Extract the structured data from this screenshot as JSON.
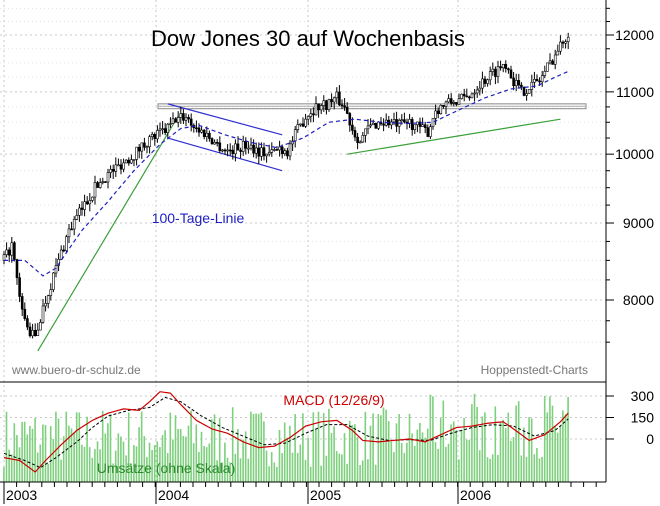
{
  "chart_data": [
    {
      "type": "candlestick",
      "title": "Dow Jones 30 auf Wochenbasis",
      "y_scale": "log",
      "ylim": [
        7300,
        12600
      ],
      "y_ticks": [
        "12000",
        "11000",
        "10000",
        "9000",
        "8000"
      ],
      "y_tick_values": [
        12000,
        11000,
        10000,
        9000,
        8000
      ],
      "x_labels": [
        "2003",
        "2004",
        "2005",
        "2006"
      ],
      "grid": true,
      "annotations": {
        "ma_label": "100-Tage-Linie",
        "source_left": "www.buero-dr-schulz.de",
        "source_right": "Hoppenstedt-Charts"
      },
      "price_keypoints": [
        [
          0,
          8500
        ],
        [
          3,
          8700
        ],
        [
          6,
          8000
        ],
        [
          9,
          7650
        ],
        [
          12,
          7550
        ],
        [
          15,
          7900
        ],
        [
          20,
          8400
        ],
        [
          25,
          8900
        ],
        [
          30,
          9200
        ],
        [
          35,
          9500
        ],
        [
          40,
          9700
        ],
        [
          45,
          9850
        ],
        [
          50,
          10000
        ],
        [
          55,
          10200
        ],
        [
          59,
          10300
        ],
        [
          63,
          10400
        ],
        [
          66,
          10550
        ],
        [
          70,
          10600
        ],
        [
          74,
          10400
        ],
        [
          78,
          10300
        ],
        [
          82,
          10150
        ],
        [
          86,
          10050
        ],
        [
          90,
          10100
        ],
        [
          94,
          10150
        ],
        [
          98,
          10050
        ],
        [
          102,
          10000
        ],
        [
          106,
          10100
        ],
        [
          109,
          10050
        ],
        [
          112,
          10300
        ],
        [
          116,
          10600
        ],
        [
          120,
          10750
        ],
        [
          124,
          10800
        ],
        [
          128,
          10900
        ],
        [
          131,
          10750
        ],
        [
          134,
          10400
        ],
        [
          137,
          10200
        ],
        [
          140,
          10400
        ],
        [
          144,
          10500
        ],
        [
          148,
          10500
        ],
        [
          152,
          10450
        ],
        [
          156,
          10500
        ],
        [
          160,
          10400
        ],
        [
          163,
          10350
        ],
        [
          166,
          10700
        ],
        [
          170,
          10800
        ],
        [
          174,
          10850
        ],
        [
          178,
          10900
        ],
        [
          182,
          11100
        ],
        [
          186,
          11250
        ],
        [
          190,
          11400
        ],
        [
          193,
          11500
        ],
        [
          196,
          11200
        ],
        [
          199,
          11000
        ],
        [
          202,
          11100
        ],
        [
          206,
          11200
        ],
        [
          210,
          11500
        ],
        [
          214,
          11800
        ],
        [
          217,
          12050
        ]
      ],
      "ma_keypoints": [
        [
          0,
          8500
        ],
        [
          8,
          8500
        ],
        [
          15,
          8300
        ],
        [
          20,
          8400
        ],
        [
          30,
          8900
        ],
        [
          40,
          9300
        ],
        [
          50,
          9750
        ],
        [
          60,
          10150
        ],
        [
          68,
          10400
        ],
        [
          75,
          10450
        ],
        [
          85,
          10300
        ],
        [
          95,
          10180
        ],
        [
          105,
          10100
        ],
        [
          115,
          10250
        ],
        [
          125,
          10500
        ],
        [
          135,
          10550
        ],
        [
          145,
          10500
        ],
        [
          155,
          10480
        ],
        [
          165,
          10500
        ],
        [
          175,
          10700
        ],
        [
          185,
          10900
        ],
        [
          195,
          11050
        ],
        [
          205,
          11100
        ],
        [
          212,
          11250
        ],
        [
          217,
          11350
        ]
      ],
      "trendlines": [
        {
          "from": [
            13,
            7400
          ],
          "to": [
            67,
            10600
          ],
          "color": "#3aa03a"
        },
        {
          "from": [
            63,
            10800
          ],
          "to": [
            107,
            10300
          ],
          "color": "#3030d0"
        },
        {
          "from": [
            63,
            10250
          ],
          "to": [
            107,
            9750
          ],
          "color": "#3030d0"
        },
        {
          "from": [
            132,
            10000
          ],
          "to": [
            214,
            10550
          ],
          "color": "#3aa03a"
        }
      ],
      "resistance_band": [
        10720,
        10800
      ],
      "colors": {
        "price": "#000000",
        "ma": "#2020c0",
        "grid": "#c8c8c8"
      }
    },
    {
      "type": "macd",
      "title": "MACD (12/26/9)",
      "y_ticks": [
        "300",
        "150",
        "0"
      ],
      "y_tick_values": [
        300,
        150,
        0
      ],
      "ylim": [
        -250,
        360
      ],
      "volume_label": "Umsätze (ohne Skala)",
      "macd_keypoints": [
        [
          0,
          -130
        ],
        [
          6,
          -150
        ],
        [
          12,
          -230
        ],
        [
          16,
          -150
        ],
        [
          22,
          -40
        ],
        [
          28,
          60
        ],
        [
          34,
          130
        ],
        [
          40,
          180
        ],
        [
          46,
          210
        ],
        [
          52,
          200
        ],
        [
          56,
          260
        ],
        [
          60,
          330
        ],
        [
          64,
          320
        ],
        [
          68,
          240
        ],
        [
          74,
          130
        ],
        [
          80,
          70
        ],
        [
          86,
          40
        ],
        [
          92,
          -20
        ],
        [
          98,
          -60
        ],
        [
          104,
          -50
        ],
        [
          110,
          10
        ],
        [
          116,
          90
        ],
        [
          122,
          120
        ],
        [
          128,
          130
        ],
        [
          134,
          60
        ],
        [
          138,
          -10
        ],
        [
          144,
          -20
        ],
        [
          150,
          -10
        ],
        [
          156,
          0
        ],
        [
          162,
          -20
        ],
        [
          168,
          30
        ],
        [
          174,
          80
        ],
        [
          180,
          90
        ],
        [
          186,
          110
        ],
        [
          192,
          120
        ],
        [
          196,
          70
        ],
        [
          202,
          -10
        ],
        [
          208,
          30
        ],
        [
          214,
          120
        ],
        [
          217,
          180
        ]
      ],
      "signal_keypoints": [
        [
          0,
          -100
        ],
        [
          8,
          -150
        ],
        [
          14,
          -200
        ],
        [
          20,
          -130
        ],
        [
          28,
          -20
        ],
        [
          34,
          80
        ],
        [
          40,
          160
        ],
        [
          48,
          200
        ],
        [
          56,
          220
        ],
        [
          62,
          290
        ],
        [
          68,
          260
        ],
        [
          76,
          160
        ],
        [
          84,
          80
        ],
        [
          92,
          20
        ],
        [
          100,
          -40
        ],
        [
          108,
          -30
        ],
        [
          116,
          40
        ],
        [
          124,
          100
        ],
        [
          132,
          100
        ],
        [
          140,
          20
        ],
        [
          148,
          -10
        ],
        [
          156,
          -5
        ],
        [
          164,
          -10
        ],
        [
          172,
          40
        ],
        [
          180,
          80
        ],
        [
          188,
          100
        ],
        [
          196,
          90
        ],
        [
          204,
          20
        ],
        [
          212,
          60
        ],
        [
          217,
          140
        ]
      ],
      "colors": {
        "macd": "#cc0000",
        "signal": "#000000",
        "volume": "#7ed07e"
      }
    }
  ]
}
